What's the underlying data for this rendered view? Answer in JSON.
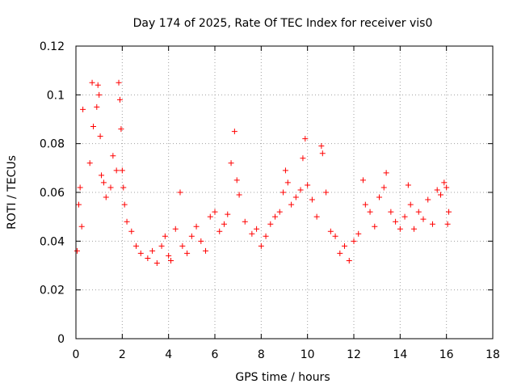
{
  "chart_data": {
    "type": "scatter",
    "title": "Day 174 of 2025, Rate Of TEC Index for receiver vis0",
    "xlabel": "GPS time / hours",
    "ylabel": "ROTI / TECUs",
    "xlim": [
      0,
      18
    ],
    "ylim": [
      0,
      0.12
    ],
    "xticks": [
      "0",
      "2",
      "4",
      "6",
      "8",
      "10",
      "12",
      "14",
      "16",
      "18"
    ],
    "xtick_values": [
      0,
      2,
      4,
      6,
      8,
      10,
      12,
      14,
      16,
      18
    ],
    "yticks": [
      "0",
      "0.02",
      "0.04",
      "0.06",
      "0.08",
      "0.1",
      "0.12"
    ],
    "ytick_values": [
      0,
      0.02,
      0.04,
      0.06,
      0.08,
      0.1,
      0.12
    ],
    "grid": true,
    "marker": "plus",
    "color": "#ff0000",
    "x": [
      0.05,
      0.12,
      0.18,
      0.25,
      0.3,
      0.6,
      0.7,
      0.75,
      0.9,
      0.95,
      1.0,
      1.05,
      1.1,
      1.2,
      1.3,
      1.5,
      1.6,
      1.75,
      1.85,
      1.9,
      1.95,
      2.0,
      2.05,
      2.1,
      2.2,
      2.4,
      2.6,
      2.8,
      3.1,
      3.3,
      3.5,
      3.7,
      3.85,
      4.0,
      4.1,
      4.3,
      4.5,
      4.6,
      4.8,
      5.0,
      5.2,
      5.4,
      5.6,
      5.8,
      6.0,
      6.2,
      6.4,
      6.55,
      6.7,
      6.85,
      6.95,
      7.05,
      7.3,
      7.6,
      7.8,
      8.0,
      8.2,
      8.4,
      8.6,
      8.8,
      8.95,
      9.05,
      9.15,
      9.3,
      9.5,
      9.7,
      9.8,
      9.9,
      10.0,
      10.2,
      10.4,
      10.6,
      10.65,
      10.8,
      11.0,
      11.2,
      11.4,
      11.6,
      11.8,
      12.0,
      12.2,
      12.4,
      12.5,
      12.7,
      12.9,
      13.1,
      13.3,
      13.4,
      13.6,
      13.8,
      14.0,
      14.2,
      14.35,
      14.45,
      14.6,
      14.8,
      15.0,
      15.2,
      15.4,
      15.6,
      15.75,
      15.9,
      16.0,
      16.05,
      16.1
    ],
    "y": [
      0.036,
      0.055,
      0.062,
      0.046,
      0.094,
      0.072,
      0.105,
      0.087,
      0.095,
      0.104,
      0.1,
      0.083,
      0.067,
      0.064,
      0.058,
      0.062,
      0.075,
      0.069,
      0.105,
      0.098,
      0.086,
      0.069,
      0.062,
      0.055,
      0.048,
      0.044,
      0.038,
      0.035,
      0.033,
      0.036,
      0.031,
      0.038,
      0.042,
      0.034,
      0.032,
      0.045,
      0.06,
      0.038,
      0.035,
      0.042,
      0.046,
      0.04,
      0.036,
      0.05,
      0.052,
      0.044,
      0.047,
      0.051,
      0.072,
      0.085,
      0.065,
      0.059,
      0.048,
      0.043,
      0.045,
      0.038,
      0.042,
      0.047,
      0.05,
      0.052,
      0.06,
      0.069,
      0.064,
      0.055,
      0.058,
      0.061,
      0.074,
      0.082,
      0.063,
      0.057,
      0.05,
      0.079,
      0.076,
      0.06,
      0.044,
      0.042,
      0.035,
      0.038,
      0.032,
      0.04,
      0.043,
      0.065,
      0.055,
      0.052,
      0.046,
      0.058,
      0.062,
      0.068,
      0.052,
      0.048,
      0.045,
      0.05,
      0.063,
      0.055,
      0.045,
      0.052,
      0.049,
      0.057,
      0.047,
      0.061,
      0.059,
      0.064,
      0.062,
      0.047,
      0.052
    ]
  }
}
